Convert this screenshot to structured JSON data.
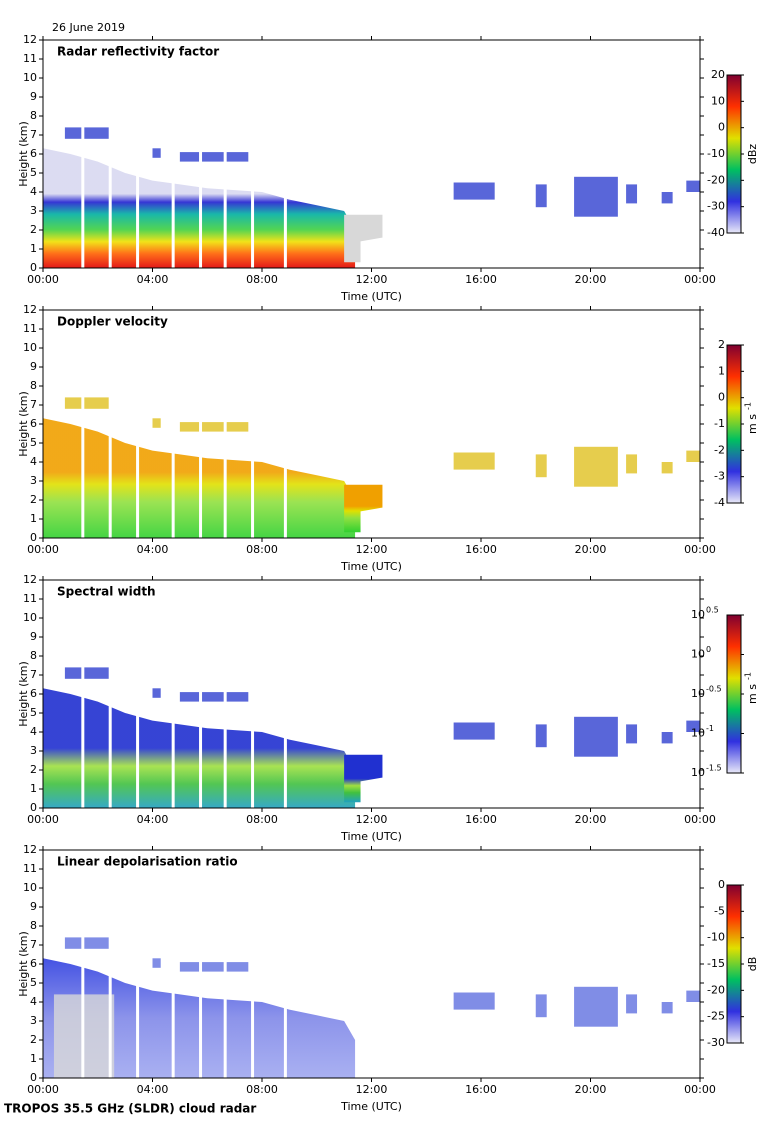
{
  "header": "26 June 2019",
  "footer": "TROPOS 35.5 GHz (SLDR) cloud radar",
  "chart_data": [
    {
      "type": "heatmap",
      "title": "Radar reflectivity factor",
      "xlabel": "Time (UTC)",
      "ylabel": "Height (km)",
      "xlim": [
        0,
        24
      ],
      "xticks": [
        {
          "value": 0,
          "label": "00:00"
        },
        {
          "value": 4,
          "label": "04:00"
        },
        {
          "value": 8,
          "label": "08:00"
        },
        {
          "value": 12,
          "label": "12:00"
        },
        {
          "value": 16,
          "label": "16:00"
        },
        {
          "value": 20,
          "label": "20:00"
        },
        {
          "value": 24,
          "label": "00:00"
        }
      ],
      "ylim": [
        0,
        12
      ],
      "yticks": [
        0,
        1,
        2,
        3,
        4,
        5,
        6,
        7,
        8,
        9,
        10,
        11,
        12
      ],
      "colorbar": {
        "label": "dBz",
        "lim": [
          -40,
          20
        ],
        "ticks": [
          -40,
          -30,
          -20,
          -10,
          0,
          10,
          20
        ],
        "colors": [
          "#e8e8f8",
          "#3030e0",
          "#00c060",
          "#e0e000",
          "#ff3000",
          "#800030"
        ]
      }
    },
    {
      "type": "heatmap",
      "title": "Doppler velocity",
      "xlabel": "Time (UTC)",
      "ylabel": "Height (km)",
      "xlim": [
        0,
        24
      ],
      "xticks": [
        {
          "value": 0,
          "label": "00:00"
        },
        {
          "value": 4,
          "label": "04:00"
        },
        {
          "value": 8,
          "label": "08:00"
        },
        {
          "value": 12,
          "label": "12:00"
        },
        {
          "value": 16,
          "label": "16:00"
        },
        {
          "value": 20,
          "label": "20:00"
        },
        {
          "value": 24,
          "label": "00:00"
        }
      ],
      "ylim": [
        0,
        12
      ],
      "yticks": [
        0,
        1,
        2,
        3,
        4,
        5,
        6,
        7,
        8,
        9,
        10,
        11,
        12
      ],
      "colorbar": {
        "label": "m s",
        "label_exponent": "-1",
        "lim": [
          -4,
          2
        ],
        "ticks": [
          -4,
          -3,
          -2,
          -1,
          0,
          1,
          2
        ],
        "colors": [
          "#e8e8f8",
          "#3030e0",
          "#00c060",
          "#e0e000",
          "#ff3000",
          "#800030"
        ]
      }
    },
    {
      "type": "heatmap",
      "title": "Spectral width",
      "xlabel": "Time (UTC)",
      "ylabel": "Height (km)",
      "xlim": [
        0,
        24
      ],
      "xticks": [
        {
          "value": 0,
          "label": "00:00"
        },
        {
          "value": 4,
          "label": "04:00"
        },
        {
          "value": 8,
          "label": "08:00"
        },
        {
          "value": 12,
          "label": "12:00"
        },
        {
          "value": 16,
          "label": "16:00"
        },
        {
          "value": 20,
          "label": "20:00"
        },
        {
          "value": 24,
          "label": "00:00"
        }
      ],
      "ylim": [
        0,
        12
      ],
      "yticks": [
        0,
        1,
        2,
        3,
        4,
        5,
        6,
        7,
        8,
        9,
        10,
        11,
        12
      ],
      "colorbar": {
        "label": "m s",
        "label_exponent": "-1",
        "log_scale": true,
        "lim": [
          -1.5,
          0.5
        ],
        "ticks": [
          {
            "value": -1.5,
            "label": "10",
            "exponent": "-1.5"
          },
          {
            "value": -1,
            "label": "10",
            "exponent": "-1"
          },
          {
            "value": -0.5,
            "label": "10",
            "exponent": "-0.5"
          },
          {
            "value": 0,
            "label": "10",
            "exponent": "0"
          },
          {
            "value": 0.5,
            "label": "10",
            "exponent": "0.5"
          }
        ],
        "colors": [
          "#e8e8f8",
          "#3030e0",
          "#00c060",
          "#e0e000",
          "#ff3000",
          "#800030"
        ]
      }
    },
    {
      "type": "heatmap",
      "title": "Linear depolarisation ratio",
      "xlabel": "Time (UTC)",
      "ylabel": "Height (km)",
      "xlim": [
        0,
        24
      ],
      "xticks": [
        {
          "value": 0,
          "label": "00:00"
        },
        {
          "value": 4,
          "label": "04:00"
        },
        {
          "value": 8,
          "label": "08:00"
        },
        {
          "value": 12,
          "label": "12:00"
        },
        {
          "value": 16,
          "label": "16:00"
        },
        {
          "value": 20,
          "label": "20:00"
        },
        {
          "value": 24,
          "label": "00:00"
        }
      ],
      "ylim": [
        0,
        12
      ],
      "yticks": [
        0,
        1,
        2,
        3,
        4,
        5,
        6,
        7,
        8,
        9,
        10,
        11,
        12
      ],
      "colorbar": {
        "label": "dB",
        "lim": [
          -30,
          0
        ],
        "ticks": [
          -30,
          -25,
          -20,
          -15,
          -10,
          -5,
          0
        ],
        "colors": [
          "#e8e8f8",
          "#3030e0",
          "#00c060",
          "#e0e000",
          "#ff3000",
          "#800030"
        ]
      }
    }
  ]
}
